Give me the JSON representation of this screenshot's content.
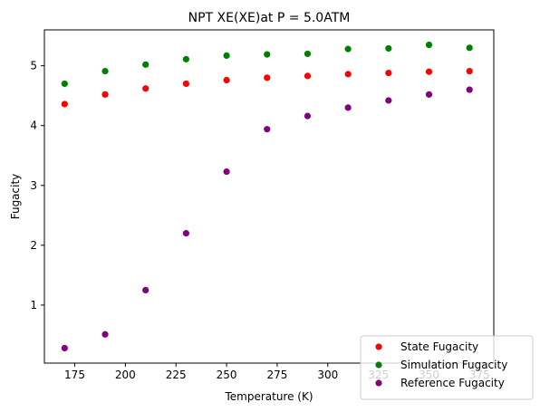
{
  "chart_data": {
    "type": "scatter",
    "title": "NPT XE(XE)at P = 5.0ATM",
    "xlabel": "Temperature (K)",
    "ylabel": "Fugacity",
    "xlim": [
      160,
      382
    ],
    "ylim": [
      0.03,
      5.6
    ],
    "xticks": [
      175,
      200,
      225,
      250,
      275,
      300,
      325,
      350,
      375
    ],
    "yticks": [
      1,
      2,
      3,
      4,
      5
    ],
    "grid": false,
    "legend_position": "lower-right",
    "x": [
      170,
      190,
      210,
      230,
      250,
      270,
      290,
      310,
      330,
      350,
      370
    ],
    "series": [
      {
        "name": "State Fugacity",
        "color": "#ff0000",
        "values": [
          4.36,
          4.52,
          4.62,
          4.7,
          4.76,
          4.8,
          4.83,
          4.86,
          4.88,
          4.9,
          4.91
        ]
      },
      {
        "name": "Simulation Fugacity",
        "color": "#008000",
        "values": [
          4.7,
          4.91,
          5.02,
          5.11,
          5.17,
          5.19,
          5.2,
          5.28,
          5.29,
          5.35,
          5.3
        ]
      },
      {
        "name": "Reference Fugacity",
        "color": "#800080",
        "values": [
          0.28,
          0.51,
          1.25,
          2.2,
          3.23,
          3.94,
          4.16,
          4.3,
          4.42,
          4.52,
          4.6
        ]
      }
    ]
  }
}
